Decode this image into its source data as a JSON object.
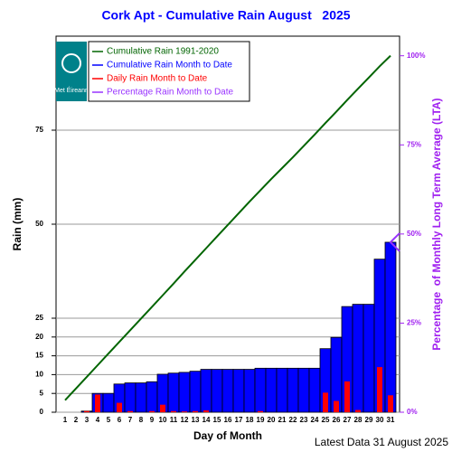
{
  "chart_data": {
    "type": "bar",
    "title": "Cork Apt - Cumulative Rain August   2025",
    "x_label": "Day of Month",
    "y_label": "Rain (mm)",
    "y2_label": "Percentage  of Monthly Long Term Average (LTA)",
    "footer": "Latest Data 31 August 2025",
    "logo": "Met Éireann",
    "categories": [
      "1",
      "2",
      "3",
      "4",
      "5",
      "6",
      "7",
      "8",
      "9",
      "10",
      "11",
      "12",
      "13",
      "14",
      "15",
      "16",
      "17",
      "18",
      "19",
      "20",
      "21",
      "22",
      "23",
      "24",
      "25",
      "26",
      "27",
      "28",
      "29",
      "30",
      "31"
    ],
    "ylim": [
      0,
      100
    ],
    "yticks": [
      0,
      5,
      10,
      15,
      20,
      25,
      50,
      75
    ],
    "y2lim": [
      0,
      105.5
    ],
    "y2ticks": [
      {
        "value": 0,
        "label": "0%"
      },
      {
        "value": 25,
        "label": "25%"
      },
      {
        "value": 50,
        "label": "50%"
      },
      {
        "value": 75,
        "label": "75%"
      },
      {
        "value": 100,
        "label": "100%"
      }
    ],
    "grid": true,
    "series": [
      {
        "name": "Cumulative Rain 1991-2020",
        "color": "#006400",
        "kind": "line",
        "values": [
          3.2,
          6.3,
          9.4,
          12.5,
          15.6,
          18.7,
          21.8,
          24.9,
          28.0,
          31.1,
          34.2,
          37.4,
          40.5,
          43.6,
          46.7,
          49.8,
          52.9,
          56.0,
          59.0,
          62.0,
          64.9,
          67.8,
          70.8,
          73.8,
          76.9,
          79.9,
          83.0,
          86.0,
          89.0,
          92.0,
          94.8
        ]
      },
      {
        "name": "Cumulative Rain Month to Date",
        "color": "#0000ff",
        "kind": "bar",
        "values": [
          0,
          0,
          0.3,
          5.0,
          5.0,
          7.5,
          7.8,
          7.8,
          8.1,
          10.1,
          10.4,
          10.6,
          10.9,
          11.4,
          11.4,
          11.4,
          11.4,
          11.4,
          11.7,
          11.7,
          11.7,
          11.7,
          11.7,
          11.7,
          16.9,
          19.9,
          28.1,
          28.7,
          28.7,
          40.7,
          45.2
        ]
      },
      {
        "name": "Daily Rain Month to Date",
        "color": "#ff0000",
        "kind": "bar",
        "values": [
          0,
          0,
          0.3,
          4.7,
          0,
          2.5,
          0.3,
          0,
          0.3,
          2.0,
          0.3,
          0.2,
          0.3,
          0.5,
          0,
          0,
          0,
          0,
          0.3,
          0,
          0,
          0,
          0,
          0,
          5.2,
          3.0,
          8.2,
          0.6,
          0,
          12.0,
          4.5
        ]
      },
      {
        "name": "Percentage Rain Month to Date",
        "color": "#9933ff",
        "kind": "marker",
        "axis": "y2",
        "values": [
          null,
          null,
          null,
          null,
          null,
          null,
          null,
          null,
          null,
          null,
          null,
          null,
          null,
          null,
          null,
          null,
          null,
          null,
          null,
          null,
          null,
          null,
          null,
          null,
          null,
          null,
          null,
          null,
          null,
          null,
          47.7
        ]
      }
    ]
  }
}
